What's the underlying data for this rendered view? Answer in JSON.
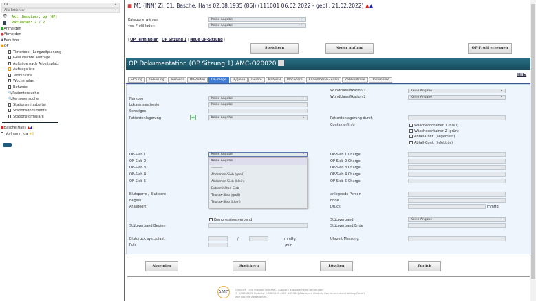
{
  "sidebar": {
    "select1": "OP",
    "select2": "Alle Patienten",
    "user": "Akt. Benutzer: op (OP)",
    "patients": "Patienten: 2 / 2",
    "login": "Anmelden",
    "logout": "Abmelden",
    "benutzer": "Benutzer",
    "op": "OP",
    "items": [
      "Timerbee - Langzeitplanung",
      "Gewünschte Aufträge",
      "Aufträge nach Arbeitsplatz",
      "Auftragsliste",
      "Terminliste",
      "Wochenplan",
      "Befunde",
      "Patientensuche",
      "Personensuche",
      "Stationsmitarbeiter",
      "Stationsdokumente",
      "Stationsformulare"
    ],
    "patients_list": [
      "Basche Hans",
      "Vollmann Ida"
    ]
  },
  "header": {
    "patient": "M1 (INN)  Zi. 01: Basche, Hans  02.08.1935 (86J) (111001 06.02.2022 - gepl.: 21.02.2022)"
  },
  "top": {
    "kategorie_label": "Kategorie wählen",
    "kategorie_value": "Keine Angabe",
    "profil_label": "von Profil laden",
    "profil_value": "Keine Angabe",
    "links": [
      "OP Terminplan",
      "OP Sitzung 1",
      "Neue OP-Sitzung"
    ],
    "save": "Speichern",
    "new_order": "Neuer Auftrag",
    "create_profile": "OP-Profil erzeugen"
  },
  "title": "OP Dokumentation (OP Sitzung 1)  AMC-O20020",
  "help": "Hilfe",
  "tabs": [
    "Sitzung",
    "Kodierung",
    "Personal",
    "OP-Zeiten",
    "OP-Pflege",
    "Hygiene",
    "Geräte",
    "Material",
    "Procedere",
    "Anaesthesie-Zeiten",
    "Zählkontrolle",
    "Dokumente"
  ],
  "active_tab": "OP-Pflege",
  "form": {
    "narkose": "Narkose",
    "lokal": "Lokalanaesthesie",
    "sonstiges": "Sonstiges",
    "lagerung": "Patientenlagerung",
    "none": "Keine Angabe",
    "wund1": "Wundklassifikation 1",
    "wund2": "Wundklassifikation 2",
    "lagerung_durch": "Patientenlagerung durch",
    "container": "Container/Info",
    "checks": [
      "Wäschecontainer 1 (blau)",
      "Wäschecontainer 2 (grün)",
      "Abfall-Cont. (allgemein)",
      "Abfall-Cont. (infektiös)"
    ],
    "siebe": [
      "OP-Sieb  1",
      "OP-Sieb  2",
      "OP-Sieb  3",
      "OP-Sieb  4",
      "OP-Sieb  5"
    ],
    "chargen": [
      "OP-Sieb  1  Charge",
      "OP-Sieb  2  Charge",
      "OP-Sieb  3  Charge",
      "OP-Sieb  4  Charge",
      "OP-Sieb  5  Charge"
    ],
    "dropdown": [
      "Keine Angabe",
      "----------",
      "Abdomen-Sieb (groß)",
      "Abdomen-Sieb (klein)",
      "Extremitäten-Sieb",
      "Thorax-Sieb (groß)",
      "Thorax-Sieb (klein)"
    ],
    "blutsperre": "Blutsperre / Blutleere",
    "beginn": "Beginn",
    "anlageort": "Anlageort",
    "person": "anlegende Person",
    "ende": "Ende",
    "druck": "Druck",
    "mmhg": "mmHg",
    "kompression": "Kompressionsverband",
    "stuetz": "Stützverband",
    "stuetz_beginn": "Stützverband Beginn",
    "stuetz_ende": "Stützverband Ende",
    "blutdruck": "Blutdruck syst./diast.",
    "slash": "/",
    "puls": "Puls",
    "min": "/min",
    "uhrzeit": "Uhrzeit Messung"
  },
  "bottom": {
    "send": "Absenden",
    "save": "Speichern",
    "delete": "Löschen",
    "back": "Zurück"
  },
  "footer": {
    "logo": "AMC",
    "line1": "Clinixx® - ein Produkt von AMC. Support: support@amc-gmbh.com",
    "line2": "© 2005-2022 Sintaris: 2.8289045 (160 #65984) Advanced Medical Communication Holding GmbH.",
    "line3": "Alle Rechte vorbehalten."
  },
  "colors": {
    "title_bar": "#1d5a6c",
    "accent": "#3f7ed8",
    "user_text": "#6aa820"
  }
}
